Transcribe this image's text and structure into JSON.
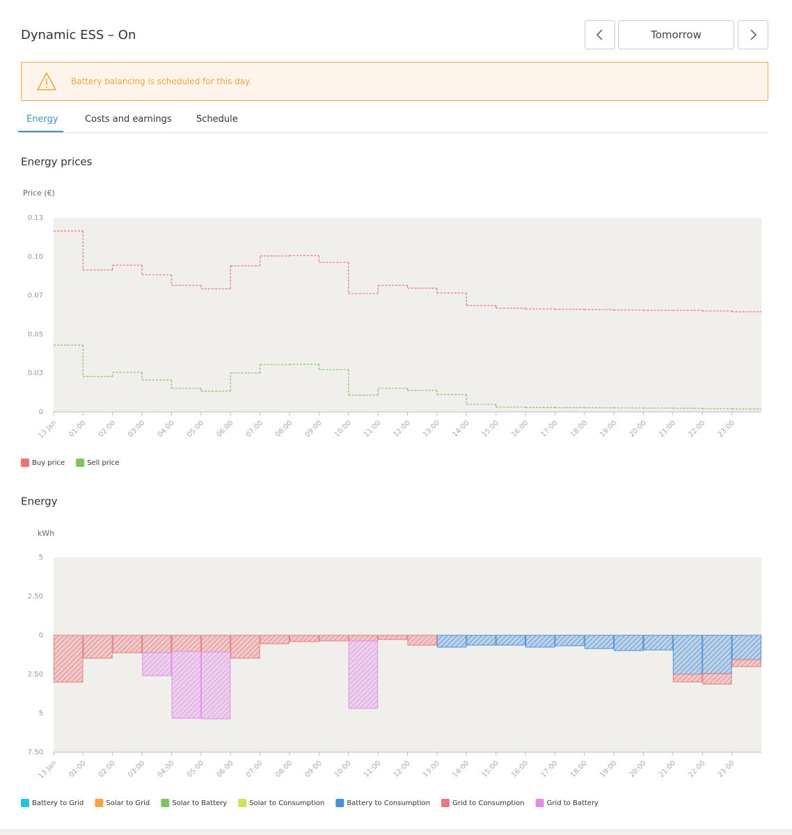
{
  "header": {
    "title": "Dynamic ESS – On",
    "day": "Tomorrow"
  },
  "alert": "Battery balancing is scheduled for this day.",
  "tabs": [
    "Energy",
    "Costs and earnings",
    "Schedule"
  ],
  "chart_data": [
    {
      "type": "line",
      "step": true,
      "title": "Energy prices",
      "y_label": "Price (€)",
      "categories": [
        "13 Jan",
        "01:00",
        "02:00",
        "03:00",
        "04:00",
        "05:00",
        "06:00",
        "07:00",
        "08:00",
        "09:00",
        "10:00",
        "11:00",
        "12:00",
        "13:00",
        "14:00",
        "15:00",
        "16:00",
        "17:00",
        "18:00",
        "19:00",
        "20:00",
        "21:00",
        "22:00",
        "23:00"
      ],
      "series": [
        {
          "name": "Buy price",
          "color": "#f2706f",
          "values": [
            0.1165,
            0.0914,
            0.0945,
            0.0883,
            0.0815,
            0.0793,
            0.0941,
            0.1004,
            0.1006,
            0.0963,
            0.0762,
            0.0815,
            0.0797,
            0.0766,
            0.0685,
            0.0668,
            0.0663,
            0.0661,
            0.0659,
            0.0656,
            0.0654,
            0.0654,
            0.065,
            0.0645
          ]
        },
        {
          "name": "Sell price",
          "color": "#7fc461",
          "values": [
            0.043,
            0.0228,
            0.0255,
            0.0206,
            0.0152,
            0.0134,
            0.0251,
            0.0305,
            0.0307,
            0.0273,
            0.0108,
            0.0152,
            0.0139,
            0.0112,
            0.0049,
            0.0031,
            0.0029,
            0.0028,
            0.0027,
            0.0026,
            0.0025,
            0.0024,
            0.0021,
            0.0019
          ]
        }
      ],
      "ylim": [
        0,
        0.125
      ],
      "yticks": [
        0,
        {
          "value": 0.025,
          "label": "0.03"
        },
        {
          "value": 0.05,
          "label": "0.05"
        },
        {
          "value": 0.075,
          "label": "0.07"
        },
        {
          "value": 0.1,
          "label": "0.10"
        },
        {
          "value": 0.125,
          "label": "0.13"
        }
      ],
      "grid": false
    },
    {
      "type": "bar",
      "stacked": true,
      "title": "Energy",
      "y_label": "kWh",
      "categories": [
        "13 Jan",
        "01:00",
        "02:00",
        "03:00",
        "04:00",
        "05:00",
        "06:00",
        "07:00",
        "08:00",
        "09:00",
        "10:00",
        "11:00",
        "12:00",
        "13:00",
        "14:00",
        "15:00",
        "16:00",
        "17:00",
        "18:00",
        "19:00",
        "20:00",
        "21:00",
        "22:00",
        "23:00"
      ],
      "series": [
        {
          "name": "Battery to Grid",
          "color": "#1ec5e0",
          "values": [
            0,
            0,
            0,
            0,
            0,
            0,
            0,
            0,
            0,
            0,
            0,
            0,
            0,
            0,
            0,
            0,
            0,
            0,
            0,
            0,
            0,
            0,
            0,
            0
          ]
        },
        {
          "name": "Solar to Grid",
          "color": "#f5a53b",
          "values": [
            0,
            0,
            0,
            0,
            0,
            0,
            0,
            0,
            0,
            0,
            0,
            0,
            0,
            0,
            0,
            0,
            0,
            0,
            0,
            0,
            0,
            0,
            0,
            0
          ]
        },
        {
          "name": "Solar to Battery",
          "color": "#7fc461",
          "values": [
            0,
            0,
            0,
            0,
            0,
            0,
            0,
            0,
            0,
            0,
            0,
            0,
            0,
            0,
            0,
            0,
            0,
            0,
            0,
            0,
            0,
            0,
            0,
            0
          ]
        },
        {
          "name": "Solar to Consumption",
          "color": "#d4e157",
          "values": [
            0,
            0,
            0,
            0,
            0,
            0,
            0,
            0,
            0,
            0,
            0,
            0,
            0,
            0,
            0,
            0,
            0,
            0,
            0,
            0,
            0,
            0,
            0,
            0
          ]
        },
        {
          "name": "Battery to Consumption",
          "color": "#4a90d9",
          "values": [
            0,
            0,
            0,
            0,
            0,
            0,
            0,
            0,
            0,
            0,
            0,
            0,
            0,
            -0.76,
            -0.63,
            -0.63,
            -0.76,
            -0.67,
            -0.85,
            -0.98,
            -0.94,
            -2.5,
            -2.46,
            -1.56
          ]
        },
        {
          "name": "Grid to Consumption",
          "color": "#e8797c",
          "values": [
            -3.0,
            -1.47,
            -1.12,
            -1.12,
            -1.03,
            -1.07,
            -1.47,
            -0.54,
            -0.4,
            -0.36,
            -0.36,
            -0.27,
            -0.63,
            0,
            0,
            0,
            0,
            0,
            0,
            0,
            0,
            -0.49,
            -0.67,
            -0.45
          ]
        },
        {
          "name": "Grid to Battery",
          "color": "#e08ee8",
          "values": [
            0,
            0,
            0,
            -1.47,
            -4.29,
            -4.29,
            0,
            0,
            0,
            0,
            -4.33,
            0,
            0,
            0,
            0,
            0,
            0,
            0,
            0,
            0,
            0,
            0,
            0,
            0
          ]
        }
      ],
      "ylim": [
        -7.5,
        5
      ],
      "yticks": [
        {
          "value": -7.5,
          "label": "7.50"
        },
        {
          "value": -5,
          "label": "5"
        },
        {
          "value": -2.5,
          "label": "2.50"
        },
        0,
        {
          "value": 2.5,
          "label": "2.50"
        },
        5
      ],
      "grid": false
    }
  ]
}
